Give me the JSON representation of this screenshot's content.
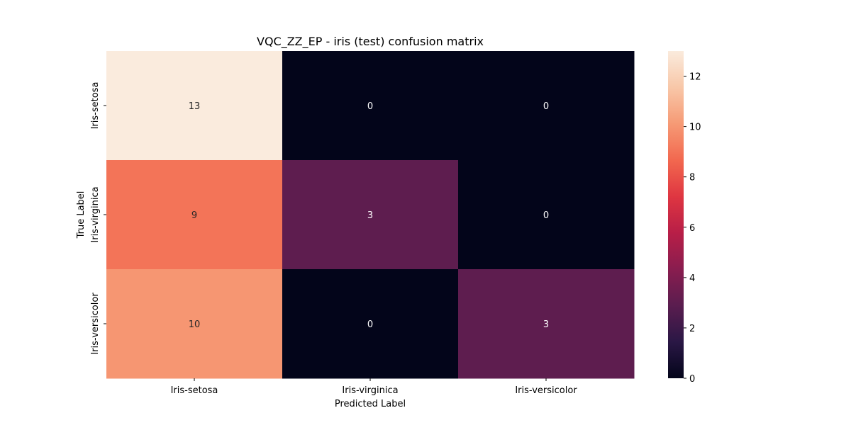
{
  "chart_data": {
    "type": "heatmap",
    "title": "VQC_ZZ_EP - iris (test) confusion matrix",
    "xlabel": "Predicted Label",
    "ylabel": "True Label",
    "x_categories": [
      "Iris-setosa",
      "Iris-virginica",
      "Iris-versicolor"
    ],
    "y_categories": [
      "Iris-setosa",
      "Iris-virginica",
      "Iris-versicolor"
    ],
    "values": [
      [
        13,
        0,
        0
      ],
      [
        9,
        3,
        0
      ],
      [
        10,
        0,
        3
      ]
    ],
    "colorbar": {
      "min": 0,
      "max": 13,
      "ticks": [
        0,
        2,
        4,
        6,
        8,
        10,
        12
      ]
    },
    "colormap": [
      "#03051a",
      "#2a1745",
      "#5a1d4f",
      "#891d4f",
      "#b81e47",
      "#df3641",
      "#f2684f",
      "#f69a75",
      "#f8c7a8",
      "#faebdd"
    ]
  }
}
